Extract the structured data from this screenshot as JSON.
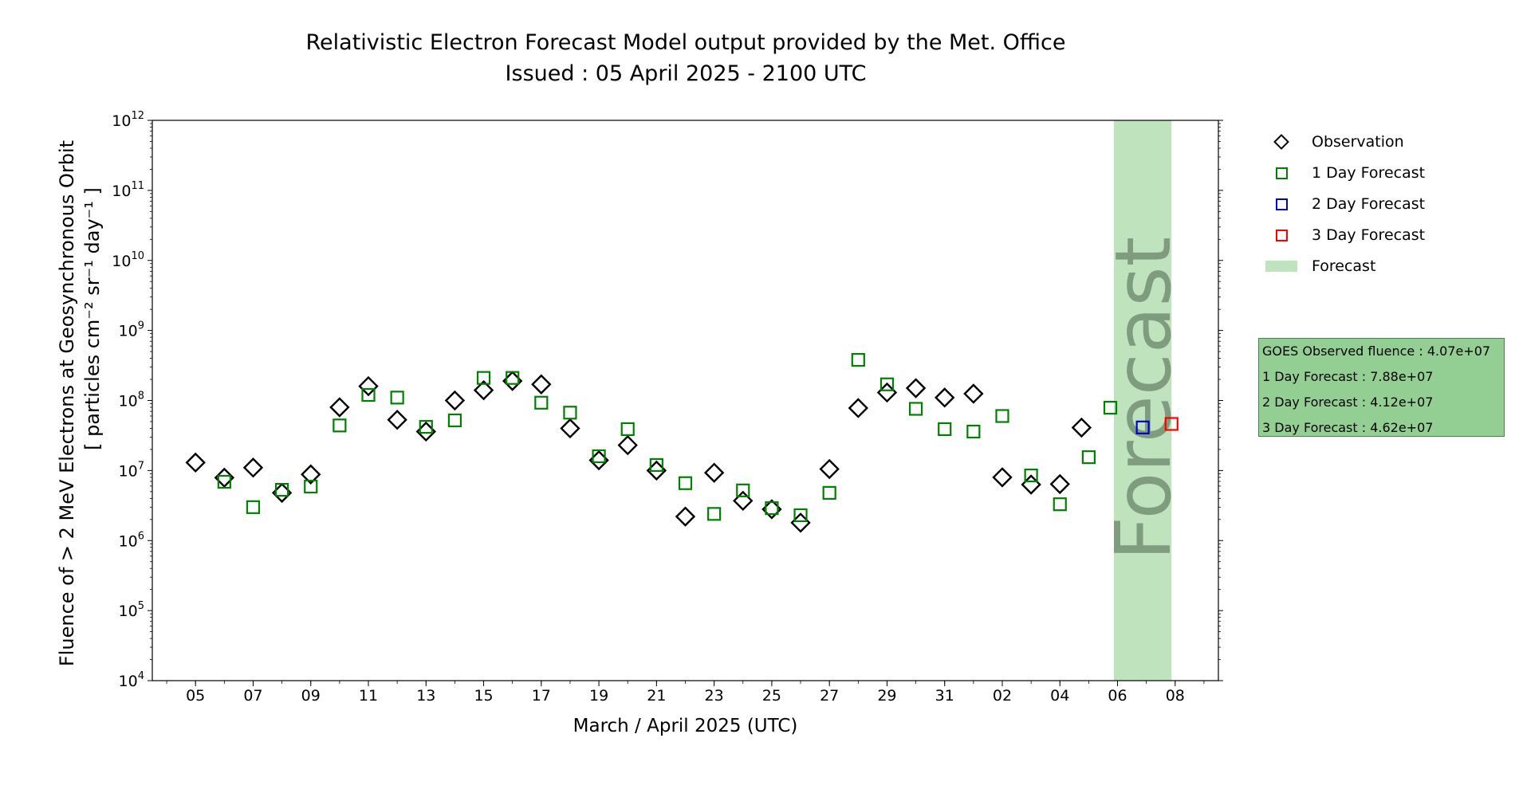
{
  "title": {
    "line1": "Relativistic Electron Forecast Model output provided by the Met. Office",
    "line2": "Issued : 05 April 2025 - 2100 UTC"
  },
  "legend": [
    {
      "label": "Observation",
      "marker": "diamond",
      "color": "#000000"
    },
    {
      "label": "1 Day Forecast",
      "marker": "square",
      "color": "#008000"
    },
    {
      "label": "2 Day Forecast",
      "marker": "square",
      "color": "#0000cc"
    },
    {
      "label": "3 Day Forecast",
      "marker": "square",
      "color": "#ff0000"
    },
    {
      "label": "Forecast",
      "marker": "band",
      "color": "#bfe3bd"
    }
  ],
  "info_box": {
    "lines": [
      "GOES Observed fluence : 4.07e+07",
      "1 Day Forecast : 7.88e+07",
      "2 Day Forecast : 4.12e+07",
      "3 Day Forecast : 4.62e+07"
    ]
  },
  "chart_data": {
    "type": "scatter",
    "x_axis": {
      "label": "March / April 2025 (UTC)",
      "ticks": [
        "05",
        "07",
        "09",
        "11",
        "13",
        "15",
        "17",
        "19",
        "21",
        "23",
        "25",
        "27",
        "29",
        "31",
        "02",
        "04",
        "06",
        "08"
      ],
      "range_days": [
        "2025-03-03T12:00",
        "2025-04-09T12:00"
      ]
    },
    "y_axis": {
      "label_line1": "Fluence of > 2 MeV Electrons at Geosynchronous Orbit",
      "label_line2": "[ particles cm⁻² sr⁻¹ day⁻¹ ]",
      "scale": "log",
      "ylim": [
        10000,
        1000000000000
      ],
      "tick_labels": [
        {
          "base": "10",
          "exp": "4"
        },
        {
          "base": "10",
          "exp": "5"
        },
        {
          "base": "10",
          "exp": "6"
        },
        {
          "base": "10",
          "exp": "7"
        },
        {
          "base": "10",
          "exp": "8"
        },
        {
          "base": "10",
          "exp": "9"
        },
        {
          "base": "10",
          "exp": "10"
        },
        {
          "base": "10",
          "exp": "11"
        },
        {
          "base": "10",
          "exp": "12"
        }
      ]
    },
    "forecast_band": {
      "label": "Forecast",
      "x_start": "2025-04-05T21:00",
      "x_end": "2025-04-07T21:00",
      "color": "#bfe3bd"
    },
    "series": [
      {
        "name": "Observation",
        "marker": "diamond",
        "color": "#000000",
        "points": [
          [
            "2025-03-05",
            13000000.0
          ],
          [
            "2025-03-06",
            7900000.0
          ],
          [
            "2025-03-07",
            11000000.0
          ],
          [
            "2025-03-08",
            4800000.0
          ],
          [
            "2025-03-09",
            8800000.0
          ],
          [
            "2025-03-10",
            80000000.0
          ],
          [
            "2025-03-11",
            160000000.0
          ],
          [
            "2025-03-12",
            53000000.0
          ],
          [
            "2025-03-13",
            36000000.0
          ],
          [
            "2025-03-14",
            100000000.0
          ],
          [
            "2025-03-15",
            140000000.0
          ],
          [
            "2025-03-16",
            190000000.0
          ],
          [
            "2025-03-17",
            170000000.0
          ],
          [
            "2025-03-18",
            40000000.0
          ],
          [
            "2025-03-19",
            14000000.0
          ],
          [
            "2025-03-20",
            23000000.0
          ],
          [
            "2025-03-21",
            10000000.0
          ],
          [
            "2025-03-22",
            2200000.0
          ],
          [
            "2025-03-23",
            9300000.0
          ],
          [
            "2025-03-24",
            3700000.0
          ],
          [
            "2025-03-25",
            2800000.0
          ],
          [
            "2025-03-26",
            1800000.0
          ],
          [
            "2025-03-27",
            10500000.0
          ],
          [
            "2025-03-28",
            78000000.0
          ],
          [
            "2025-03-29",
            130000000.0
          ],
          [
            "2025-03-30",
            150000000.0
          ],
          [
            "2025-03-31",
            110000000.0
          ],
          [
            "2025-04-01",
            125000000.0
          ],
          [
            "2025-04-02",
            8000000.0
          ],
          [
            "2025-04-03",
            6300000.0
          ],
          [
            "2025-04-04",
            6400000.0
          ],
          [
            "2025-04-04T18:00",
            41000000.0
          ]
        ]
      },
      {
        "name": "1 Day Forecast",
        "marker": "square",
        "color": "#008000",
        "points": [
          [
            "2025-03-06",
            6900000.0
          ],
          [
            "2025-03-07",
            3000000.0
          ],
          [
            "2025-03-08",
            5300000.0
          ],
          [
            "2025-03-09",
            5900000.0
          ],
          [
            "2025-03-10",
            44000000.0
          ],
          [
            "2025-03-11",
            120000000.0
          ],
          [
            "2025-03-12",
            110000000.0
          ],
          [
            "2025-03-13",
            42000000.0
          ],
          [
            "2025-03-14",
            52000000.0
          ],
          [
            "2025-03-15",
            210000000.0
          ],
          [
            "2025-03-16",
            210000000.0
          ],
          [
            "2025-03-17",
            93000000.0
          ],
          [
            "2025-03-18",
            67000000.0
          ],
          [
            "2025-03-19",
            16000000.0
          ],
          [
            "2025-03-20",
            39000000.0
          ],
          [
            "2025-03-21",
            12000000.0
          ],
          [
            "2025-03-22",
            6600000.0
          ],
          [
            "2025-03-23",
            2400000.0
          ],
          [
            "2025-03-24",
            5200000.0
          ],
          [
            "2025-03-25",
            2900000.0
          ],
          [
            "2025-03-26",
            2300000.0
          ],
          [
            "2025-03-27",
            4800000.0
          ],
          [
            "2025-03-28",
            380000000.0
          ],
          [
            "2025-03-29",
            170000000.0
          ],
          [
            "2025-03-30",
            76000000.0
          ],
          [
            "2025-03-31",
            39000000.0
          ],
          [
            "2025-04-01",
            36000000.0
          ],
          [
            "2025-04-02",
            60000000.0
          ],
          [
            "2025-04-03",
            8500000.0
          ],
          [
            "2025-04-04",
            3300000.0
          ],
          [
            "2025-04-05",
            15500000.0
          ],
          [
            "2025-04-05T18:00",
            78800000.0
          ]
        ]
      },
      {
        "name": "2 Day Forecast",
        "marker": "square",
        "color": "#0000cc",
        "points": [
          [
            "2025-04-06T21:00",
            41200000.0
          ]
        ]
      },
      {
        "name": "3 Day Forecast",
        "marker": "square",
        "color": "#ff0000",
        "points": [
          [
            "2025-04-07T21:00",
            46200000.0
          ]
        ]
      }
    ],
    "band_text": "Forecast",
    "grid": false,
    "legend_position": "right"
  }
}
